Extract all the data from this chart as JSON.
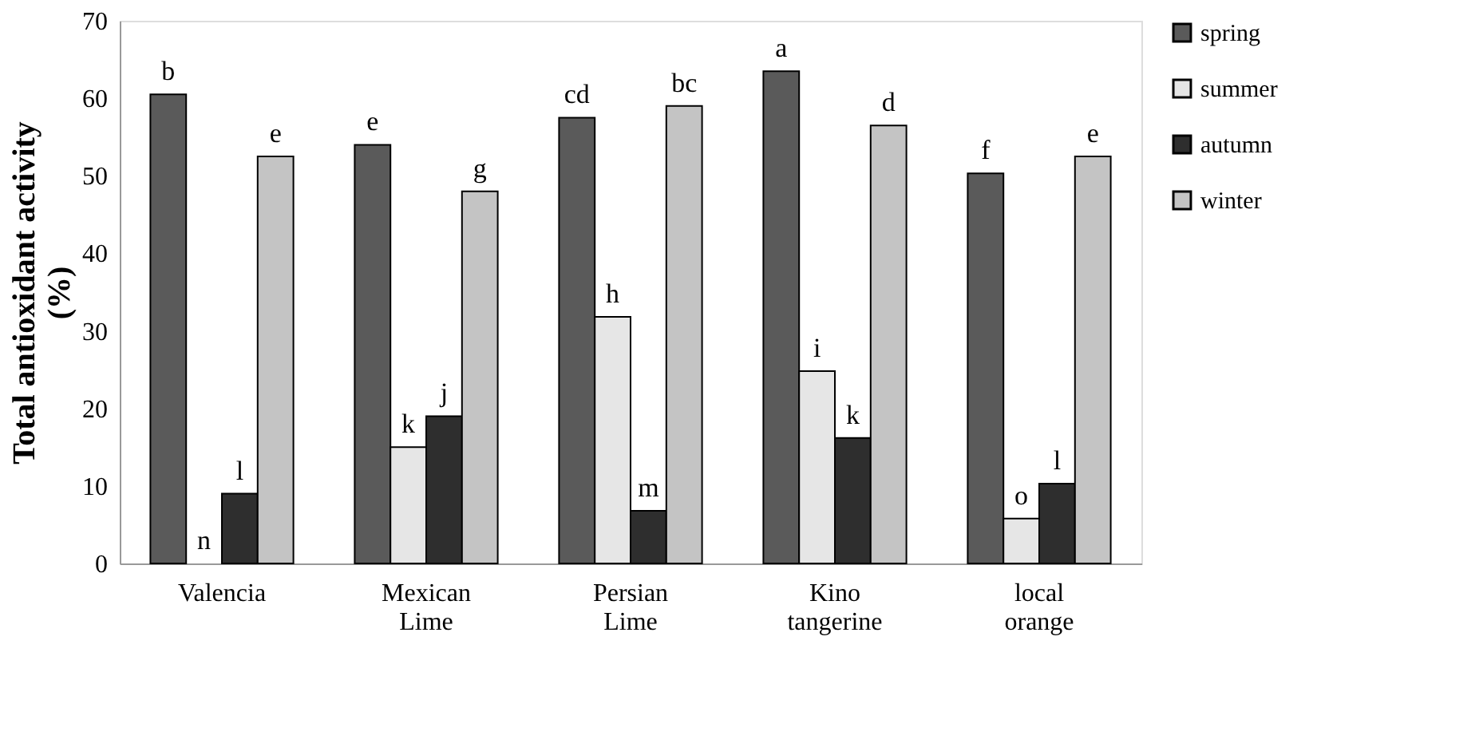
{
  "chart_data": {
    "type": "bar",
    "ylabel": "Total antioxidant activity (%)",
    "categories": [
      "Valencia",
      "Mexican Lime",
      "Persian Lime",
      "Kino tangerine",
      "local orange"
    ],
    "series": [
      {
        "name": "spring",
        "color": "#5a5a5a",
        "values": [
          60.5,
          54,
          57.5,
          63.5,
          50.3
        ],
        "value_labels": [
          "b",
          "e",
          "cd",
          "a",
          "f"
        ]
      },
      {
        "name": "summer",
        "color": "#e6e6e6",
        "values": [
          0,
          15,
          31.8,
          24.8,
          5.8
        ],
        "value_labels": [
          "n",
          "k",
          "h",
          "i",
          "o"
        ]
      },
      {
        "name": "autumn",
        "color": "#2e2e2e",
        "values": [
          9,
          19,
          6.8,
          16.2,
          10.3
        ],
        "value_labels": [
          "l",
          "j",
          "m",
          "k",
          "l"
        ]
      },
      {
        "name": "winter",
        "color": "#c4c4c4",
        "values": [
          52.5,
          48,
          59,
          56.5,
          52.5
        ],
        "value_labels": [
          "e",
          "g",
          "bc",
          "d",
          "e"
        ]
      }
    ],
    "ylim": [
      0,
      70
    ],
    "yticks": [
      0,
      10,
      20,
      30,
      40,
      50,
      60,
      70
    ],
    "grid": false,
    "legend": "right"
  }
}
